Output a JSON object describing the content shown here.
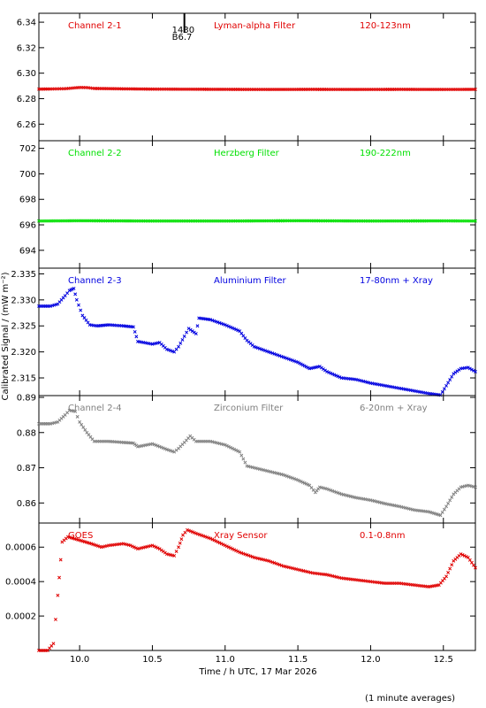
{
  "figure": {
    "xlabel": "Time / h UTC, 17 Mar 2026",
    "ylabel": "Calibrated Signal / (mW m⁻²)",
    "footnote": "(1 minute averages)",
    "event_marker": {
      "x": 10.72,
      "label_top": "1430",
      "label_bottom": "B6.7"
    }
  },
  "chart_data": [
    {
      "type": "scatter",
      "channel": "Channel 2-1",
      "filter": "Lyman-alpha Filter",
      "band": "120-123nm",
      "color": "#e00000",
      "xlim": [
        9.72,
        12.72
      ],
      "ylim": [
        6.247,
        6.347
      ],
      "yticks": [
        6.26,
        6.28,
        6.3,
        6.32,
        6.34
      ],
      "ytick_labels": [
        "6.26",
        "6.28",
        "6.30",
        "6.32",
        "6.34"
      ],
      "points": [
        [
          9.72,
          6.2875
        ],
        [
          9.8,
          6.2876
        ],
        [
          9.9,
          6.2878
        ],
        [
          10.0,
          6.2888
        ],
        [
          10.05,
          6.2887
        ],
        [
          10.1,
          6.288
        ],
        [
          10.3,
          6.2877
        ],
        [
          10.5,
          6.2875
        ],
        [
          10.8,
          6.2874
        ],
        [
          11.0,
          6.2873
        ],
        [
          11.3,
          6.2872
        ],
        [
          11.6,
          6.2873
        ],
        [
          11.9,
          6.2872
        ],
        [
          12.2,
          6.2873
        ],
        [
          12.5,
          6.2872
        ],
        [
          12.72,
          6.2873
        ]
      ]
    },
    {
      "type": "scatter",
      "channel": "Channel 2-2",
      "filter": "Herzberg Filter",
      "band": "190-222nm",
      "color": "#00e000",
      "xlim": [
        9.72,
        12.72
      ],
      "ylim": [
        692.6,
        702.6
      ],
      "yticks": [
        694,
        696,
        698,
        700,
        702
      ],
      "ytick_labels": [
        "694",
        "696",
        "698",
        "700",
        "702"
      ],
      "points": [
        [
          9.72,
          696.3
        ],
        [
          10.0,
          696.32
        ],
        [
          10.5,
          696.3
        ],
        [
          11.0,
          696.3
        ],
        [
          11.5,
          696.32
        ],
        [
          12.0,
          696.3
        ],
        [
          12.5,
          696.31
        ],
        [
          12.72,
          696.3
        ]
      ]
    },
    {
      "type": "scatter",
      "channel": "Channel 2-3",
      "filter": "Aluminium Filter",
      "band": "17-80nm + Xray",
      "color": "#0000e0",
      "xlim": [
        9.72,
        12.72
      ],
      "ylim": [
        2.3116,
        2.3361
      ],
      "yticks": [
        2.315,
        2.32,
        2.325,
        2.33,
        2.335
      ],
      "ytick_labels": [
        "2.315",
        "2.320",
        "2.325",
        "2.330",
        "2.335"
      ],
      "points": [
        [
          9.72,
          2.3288
        ],
        [
          9.8,
          2.3288
        ],
        [
          9.85,
          2.3292
        ],
        [
          9.9,
          2.3308
        ],
        [
          9.93,
          2.3318
        ],
        [
          9.96,
          2.3322
        ],
        [
          9.98,
          2.33
        ],
        [
          10.02,
          2.327
        ],
        [
          10.07,
          2.3252
        ],
        [
          10.12,
          2.325
        ],
        [
          10.2,
          2.3252
        ],
        [
          10.3,
          2.325
        ],
        [
          10.37,
          2.3248
        ],
        [
          10.4,
          2.322
        ],
        [
          10.5,
          2.3215
        ],
        [
          10.55,
          2.3218
        ],
        [
          10.6,
          2.3205
        ],
        [
          10.65,
          2.32
        ],
        [
          10.68,
          2.321
        ],
        [
          10.72,
          2.323
        ],
        [
          10.75,
          2.3245
        ],
        [
          10.8,
          2.3235
        ],
        [
          10.82,
          2.3265
        ],
        [
          10.9,
          2.3262
        ],
        [
          11.0,
          2.3252
        ],
        [
          11.1,
          2.324
        ],
        [
          11.15,
          2.3222
        ],
        [
          11.2,
          2.321
        ],
        [
          11.3,
          2.32
        ],
        [
          11.4,
          2.319
        ],
        [
          11.5,
          2.318
        ],
        [
          11.58,
          2.3168
        ],
        [
          11.65,
          2.3172
        ],
        [
          11.7,
          2.3162
        ],
        [
          11.8,
          2.315
        ],
        [
          11.9,
          2.3147
        ],
        [
          12.0,
          2.314
        ],
        [
          12.1,
          2.3135
        ],
        [
          12.2,
          2.313
        ],
        [
          12.3,
          2.3125
        ],
        [
          12.4,
          2.312
        ],
        [
          12.48,
          2.3117
        ],
        [
          12.52,
          2.3135
        ],
        [
          12.57,
          2.3158
        ],
        [
          12.62,
          2.3168
        ],
        [
          12.67,
          2.317
        ],
        [
          12.72,
          2.3162
        ]
      ]
    },
    {
      "type": "scatter",
      "channel": "Channel 2-4",
      "filter": "Zirconium Filter",
      "band": "6-20nm + Xray",
      "color": "#808080",
      "xlim": [
        9.72,
        12.72
      ],
      "ylim": [
        0.8543,
        0.8905
      ],
      "yticks": [
        0.86,
        0.87,
        0.88,
        0.89
      ],
      "ytick_labels": [
        "0.86",
        "0.87",
        "0.88",
        "0.89"
      ],
      "points": [
        [
          9.72,
          0.8825
        ],
        [
          9.8,
          0.8825
        ],
        [
          9.85,
          0.883
        ],
        [
          9.9,
          0.885
        ],
        [
          9.93,
          0.8863
        ],
        [
          9.97,
          0.886
        ],
        [
          10.0,
          0.883
        ],
        [
          10.05,
          0.88
        ],
        [
          10.1,
          0.8775
        ],
        [
          10.2,
          0.8775
        ],
        [
          10.3,
          0.8772
        ],
        [
          10.37,
          0.877
        ],
        [
          10.4,
          0.876
        ],
        [
          10.5,
          0.8768
        ],
        [
          10.55,
          0.876
        ],
        [
          10.6,
          0.8752
        ],
        [
          10.65,
          0.8745
        ],
        [
          10.68,
          0.8755
        ],
        [
          10.72,
          0.8772
        ],
        [
          10.76,
          0.879
        ],
        [
          10.8,
          0.8775
        ],
        [
          10.9,
          0.8775
        ],
        [
          11.0,
          0.8765
        ],
        [
          11.1,
          0.8745
        ],
        [
          11.15,
          0.8705
        ],
        [
          11.2,
          0.87
        ],
        [
          11.3,
          0.869
        ],
        [
          11.4,
          0.868
        ],
        [
          11.5,
          0.8665
        ],
        [
          11.58,
          0.865
        ],
        [
          11.62,
          0.863
        ],
        [
          11.65,
          0.8645
        ],
        [
          11.7,
          0.864
        ],
        [
          11.8,
          0.8625
        ],
        [
          11.9,
          0.8615
        ],
        [
          12.0,
          0.8608
        ],
        [
          12.1,
          0.8598
        ],
        [
          12.2,
          0.859
        ],
        [
          12.3,
          0.858
        ],
        [
          12.4,
          0.8575
        ],
        [
          12.48,
          0.8565
        ],
        [
          12.52,
          0.859
        ],
        [
          12.57,
          0.8625
        ],
        [
          12.62,
          0.8645
        ],
        [
          12.67,
          0.865
        ],
        [
          12.72,
          0.8645
        ]
      ]
    },
    {
      "type": "scatter",
      "channel": "GOES",
      "filter": "Xray Sensor",
      "band": "0.1-0.8nm",
      "color": "#e00000",
      "xlim": [
        9.72,
        12.72
      ],
      "ylim": [
        0.0,
        0.00074
      ],
      "yticks": [
        0.0002,
        0.0004,
        0.0006
      ],
      "ytick_labels": [
        "0.0002",
        "0.0004",
        "0.0006"
      ],
      "points": [
        [
          9.72,
          0.0
        ],
        [
          9.78,
          0.0
        ],
        [
          9.82,
          4e-05
        ],
        [
          9.85,
          0.00032
        ],
        [
          9.88,
          0.00063
        ],
        [
          9.92,
          0.00066
        ],
        [
          10.0,
          0.00064
        ],
        [
          10.08,
          0.00062
        ],
        [
          10.15,
          0.0006
        ],
        [
          10.2,
          0.00061
        ],
        [
          10.3,
          0.00062
        ],
        [
          10.35,
          0.00061
        ],
        [
          10.4,
          0.00059
        ],
        [
          10.45,
          0.0006
        ],
        [
          10.5,
          0.00061
        ],
        [
          10.55,
          0.00059
        ],
        [
          10.6,
          0.00056
        ],
        [
          10.65,
          0.00055
        ],
        [
          10.68,
          0.0006
        ],
        [
          10.71,
          0.00067
        ],
        [
          10.74,
          0.0007
        ],
        [
          10.8,
          0.00068
        ],
        [
          10.9,
          0.00065
        ],
        [
          11.0,
          0.00061
        ],
        [
          11.1,
          0.00057
        ],
        [
          11.2,
          0.00054
        ],
        [
          11.3,
          0.00052
        ],
        [
          11.4,
          0.00049
        ],
        [
          11.5,
          0.00047
        ],
        [
          11.6,
          0.00045
        ],
        [
          11.7,
          0.00044
        ],
        [
          11.8,
          0.00042
        ],
        [
          11.9,
          0.00041
        ],
        [
          12.0,
          0.0004
        ],
        [
          12.1,
          0.00039
        ],
        [
          12.2,
          0.00039
        ],
        [
          12.3,
          0.00038
        ],
        [
          12.4,
          0.00037
        ],
        [
          12.47,
          0.00038
        ],
        [
          12.52,
          0.00043
        ],
        [
          12.57,
          0.00052
        ],
        [
          12.62,
          0.00056
        ],
        [
          12.67,
          0.00054
        ],
        [
          12.72,
          0.00048
        ]
      ]
    }
  ],
  "xaxis": {
    "ticks": [
      10.0,
      10.5,
      11.0,
      11.5,
      12.0,
      12.5
    ],
    "tick_labels": [
      "10.0",
      "10.5",
      "11.0",
      "11.5",
      "12.0",
      "12.5"
    ]
  }
}
